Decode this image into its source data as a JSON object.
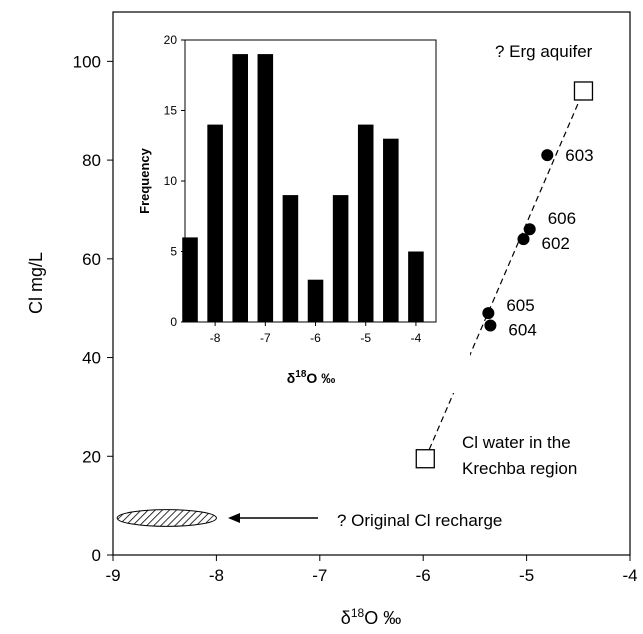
{
  "chart_data": [
    {
      "type": "scatter",
      "xlabel": "δ18O  ‰",
      "ylabel": "Cl mg/L",
      "xlim": [
        -9,
        -4
      ],
      "ylim": [
        0,
        110
      ],
      "xticks": [
        -9,
        -8,
        -7,
        -6,
        -5,
        -4
      ],
      "yticks": [
        0,
        20,
        40,
        60,
        80,
        100
      ],
      "grid": false,
      "points": [
        {
          "label": "603",
          "x": -4.8,
          "y": 81,
          "marker": "filled-circle"
        },
        {
          "label": "606",
          "x": -4.97,
          "y": 66,
          "marker": "filled-circle"
        },
        {
          "label": "602",
          "x": -5.03,
          "y": 64,
          "marker": "filled-circle"
        },
        {
          "label": "605",
          "x": -5.37,
          "y": 49,
          "marker": "filled-circle"
        },
        {
          "label": "604",
          "x": -5.35,
          "y": 46.5,
          "marker": "filled-circle"
        }
      ],
      "endmembers": [
        {
          "label": "? Erg aquifer",
          "x": -4.45,
          "y": 94,
          "marker": "open-square"
        },
        {
          "label": "Cl water in the",
          "label2": "Krechba region",
          "x": -5.98,
          "y": 19.5,
          "marker": "open-square"
        }
      ],
      "trend_line": {
        "from": [
          -5.98,
          19.5
        ],
        "to": [
          -4.45,
          94
        ],
        "style": "dashed"
      },
      "recharge": {
        "label": "? Original Cl recharge",
        "x_center": -8.48,
        "y_center": 7.5,
        "x_halfwidth": 0.48,
        "y_halfheight": 1.7,
        "fill": "hatched"
      }
    },
    {
      "type": "bar",
      "title": "",
      "xlabel": "δ18O ‰",
      "ylabel": "Frequency",
      "categories": [
        "-8.5",
        "-8",
        "-7.5",
        "-7",
        "-6.5",
        "-6",
        "-5.5",
        "-5",
        "-4.5",
        "-4"
      ],
      "values": [
        6,
        14,
        19,
        19,
        9,
        3,
        9,
        14,
        13,
        5
      ],
      "xlim": [
        -8.6,
        -3.6
      ],
      "xticks": [
        -8,
        -7,
        -6,
        -5,
        -4
      ],
      "ylim": [
        0,
        20
      ],
      "yticks": [
        0,
        5,
        10,
        15,
        20
      ],
      "bar_color": "#000000"
    }
  ]
}
